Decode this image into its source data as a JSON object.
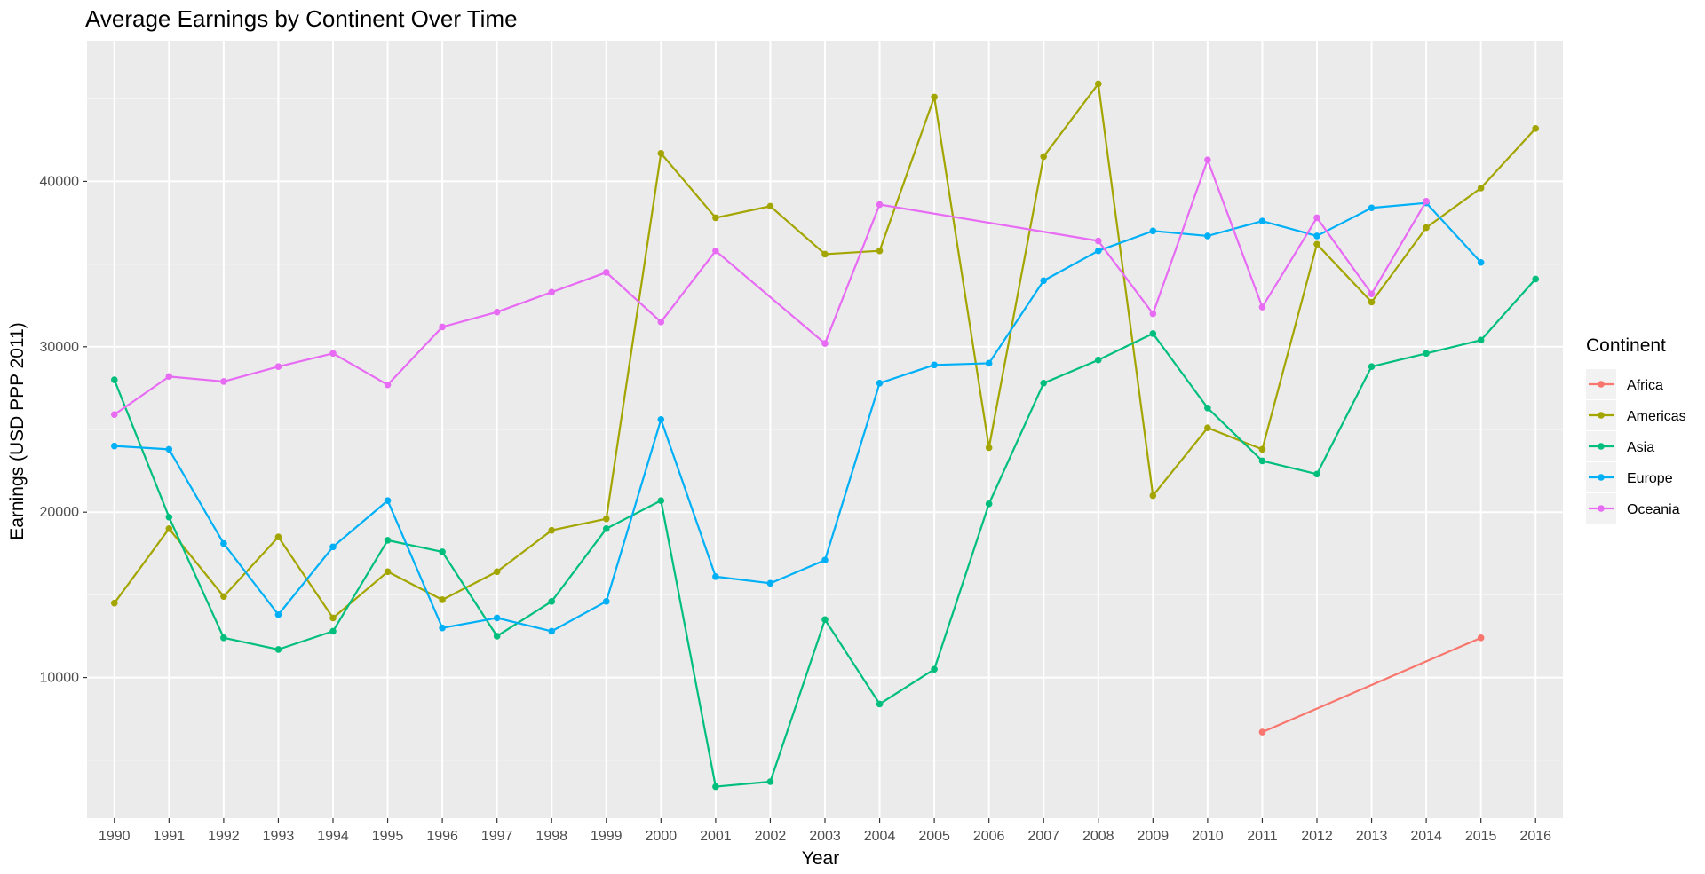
{
  "chart_data": {
    "type": "line",
    "title": "Average Earnings by Continent Over Time",
    "xlabel": "Year",
    "ylabel": "Earnings (USD PPP 2011)",
    "categories": [
      "1990",
      "1991",
      "1992",
      "1993",
      "1994",
      "1995",
      "1996",
      "1997",
      "1998",
      "1999",
      "2000",
      "2001",
      "2002",
      "2003",
      "2004",
      "2005",
      "2006",
      "2007",
      "2008",
      "2009",
      "2010",
      "2011",
      "2012",
      "2013",
      "2014",
      "2015",
      "2016"
    ],
    "ylim": [
      1500,
      48500
    ],
    "yticks": [
      10000,
      20000,
      30000,
      40000
    ],
    "ytick_labels": [
      "10000",
      "20000",
      "30000",
      "40000"
    ],
    "grid": true,
    "legend": {
      "title": "Continent",
      "position": "right"
    },
    "series": [
      {
        "name": "Africa",
        "color": "#F8766D",
        "points": [
          [
            "2011",
            6700
          ],
          [
            "2015",
            12400
          ]
        ]
      },
      {
        "name": "Americas",
        "color": "#A3A500",
        "points": [
          [
            "1990",
            14500
          ],
          [
            "1991",
            19000
          ],
          [
            "1992",
            14900
          ],
          [
            "1993",
            18500
          ],
          [
            "1994",
            13600
          ],
          [
            "1995",
            16400
          ],
          [
            "1996",
            14700
          ],
          [
            "1997",
            16400
          ],
          [
            "1998",
            18900
          ],
          [
            "1999",
            19600
          ],
          [
            "2000",
            41700
          ],
          [
            "2001",
            37800
          ],
          [
            "2002",
            38500
          ],
          [
            "2003",
            35600
          ],
          [
            "2004",
            35800
          ],
          [
            "2005",
            45100
          ],
          [
            "2006",
            23900
          ],
          [
            "2007",
            41500
          ],
          [
            "2008",
            45900
          ],
          [
            "2009",
            21000
          ],
          [
            "2010",
            25100
          ],
          [
            "2011",
            23800
          ],
          [
            "2012",
            36200
          ],
          [
            "2013",
            32700
          ],
          [
            "2014",
            37200
          ],
          [
            "2015",
            39600
          ],
          [
            "2016",
            43200
          ]
        ]
      },
      {
        "name": "Asia",
        "color": "#00BF7D",
        "points": [
          [
            "1990",
            28000
          ],
          [
            "1991",
            19700
          ],
          [
            "1992",
            12400
          ],
          [
            "1993",
            11700
          ],
          [
            "1994",
            12800
          ],
          [
            "1995",
            18300
          ],
          [
            "1996",
            17600
          ],
          [
            "1997",
            12500
          ],
          [
            "1998",
            14600
          ],
          [
            "1999",
            19000
          ],
          [
            "2000",
            20700
          ],
          [
            "2001",
            3400
          ],
          [
            "2002",
            3700
          ],
          [
            "2003",
            13500
          ],
          [
            "2004",
            8400
          ],
          [
            "2005",
            10500
          ],
          [
            "2006",
            20500
          ],
          [
            "2007",
            27800
          ],
          [
            "2008",
            29200
          ],
          [
            "2009",
            30800
          ],
          [
            "2010",
            26300
          ],
          [
            "2011",
            23100
          ],
          [
            "2012",
            22300
          ],
          [
            "2013",
            28800
          ],
          [
            "2014",
            29600
          ],
          [
            "2015",
            30400
          ],
          [
            "2016",
            34100
          ]
        ]
      },
      {
        "name": "Europe",
        "color": "#00B0F6",
        "points": [
          [
            "1990",
            24000
          ],
          [
            "1991",
            23800
          ],
          [
            "1992",
            18100
          ],
          [
            "1993",
            13800
          ],
          [
            "1994",
            17900
          ],
          [
            "1995",
            20700
          ],
          [
            "1996",
            13000
          ],
          [
            "1997",
            13600
          ],
          [
            "1998",
            12800
          ],
          [
            "1999",
            14600
          ],
          [
            "2000",
            25600
          ],
          [
            "2001",
            16100
          ],
          [
            "2002",
            15700
          ],
          [
            "2003",
            17100
          ],
          [
            "2004",
            27800
          ],
          [
            "2005",
            28900
          ],
          [
            "2006",
            29000
          ],
          [
            "2007",
            34000
          ],
          [
            "2008",
            35800
          ],
          [
            "2009",
            37000
          ],
          [
            "2010",
            36700
          ],
          [
            "2011",
            37600
          ],
          [
            "2012",
            36700
          ],
          [
            "2013",
            38400
          ],
          [
            "2014",
            38700
          ],
          [
            "2015",
            35100
          ]
        ]
      },
      {
        "name": "Oceania",
        "color": "#E76BF3",
        "points": [
          [
            "1990",
            25900
          ],
          [
            "1991",
            28200
          ],
          [
            "1992",
            27900
          ],
          [
            "1993",
            28800
          ],
          [
            "1994",
            29600
          ],
          [
            "1995",
            27700
          ],
          [
            "1996",
            31200
          ],
          [
            "1997",
            32100
          ],
          [
            "1998",
            33300
          ],
          [
            "1999",
            34500
          ],
          [
            "2000",
            31500
          ],
          [
            "2001",
            35800
          ],
          [
            "2003",
            30200
          ],
          [
            "2004",
            38600
          ],
          [
            "2008",
            36400
          ],
          [
            "2009",
            32000
          ],
          [
            "2010",
            41300
          ],
          [
            "2011",
            32400
          ],
          [
            "2012",
            37800
          ],
          [
            "2013",
            33200
          ],
          [
            "2014",
            38800
          ]
        ]
      }
    ]
  }
}
